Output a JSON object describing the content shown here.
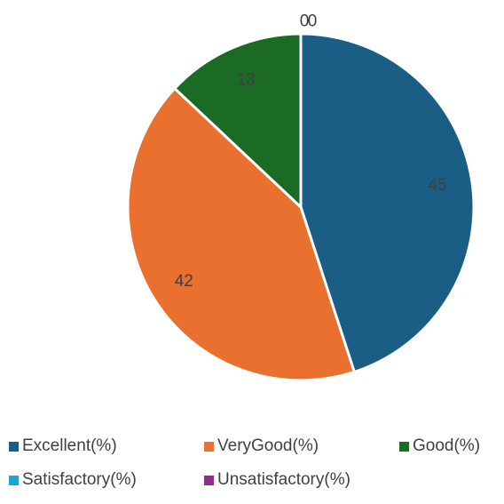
{
  "chart_data": {
    "type": "pie",
    "categories": [
      "Excellent(%)",
      "VeryGood(%)",
      "Good(%)",
      "Satisfactory(%)",
      "Unsatisfactory(%)"
    ],
    "values": [
      45,
      42,
      13,
      0,
      0
    ],
    "colors": [
      "#1a5e85",
      "#ea7030",
      "#1b6b24",
      "#1aa3d6",
      "#8e2c8f"
    ],
    "legend_position": "bottom"
  }
}
